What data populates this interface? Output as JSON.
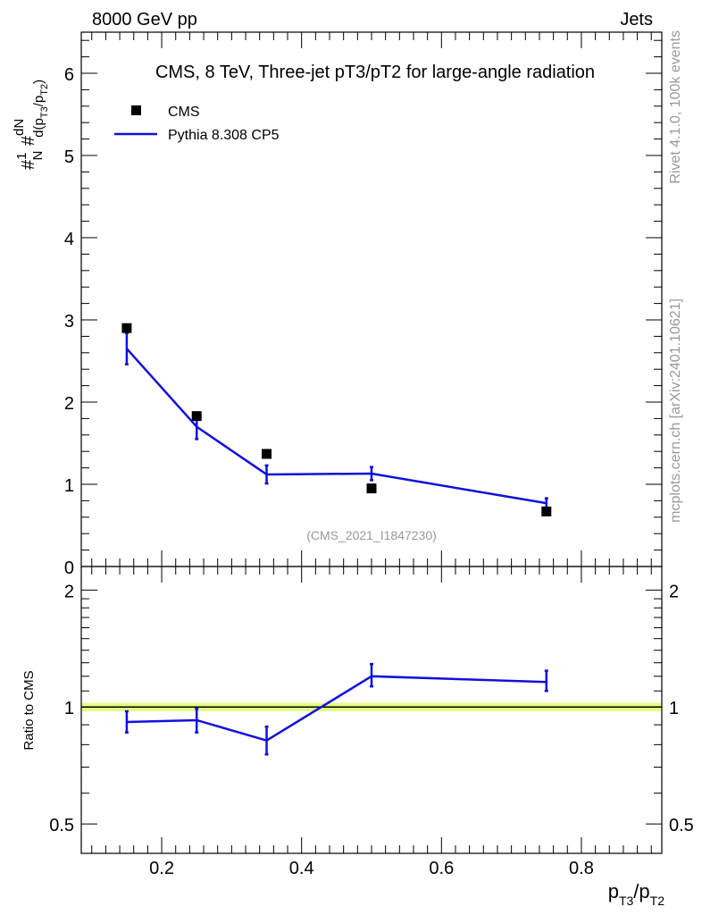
{
  "header": {
    "left": "8000 GeV pp",
    "right": "Jets"
  },
  "side_labels": {
    "rivet": "Rivet 4.1.0,  100k events",
    "mcplots": "mcplots.cern.ch [arXiv:2401.10621]"
  },
  "chart_data": [
    {
      "type": "scatter",
      "title": "CMS, 8 TeV, Three-jet pT3/pT2 for large-angle radiation",
      "watermark": "(CMS_2021_I1847230)",
      "ylabel": "#1/N #dN/d(p_T3/p_T2)",
      "ylim": [
        0,
        6.5
      ],
      "yticks": [
        0,
        1,
        2,
        3,
        4,
        5,
        6
      ],
      "xlim": [
        0.085,
        0.915
      ],
      "legend_position": "top-left",
      "legend": [
        {
          "name": "CMS",
          "marker": "square",
          "color": "#000000"
        },
        {
          "name": "Pythia 8.308 CP5",
          "marker": "line",
          "color": "#1010dd"
        }
      ],
      "series": [
        {
          "name": "CMS",
          "x": [
            0.15,
            0.25,
            0.35,
            0.5,
            0.75
          ],
          "y": [
            2.9,
            1.83,
            1.37,
            0.95,
            0.67
          ]
        },
        {
          "name": "Pythia 8.308 CP5",
          "x": [
            0.15,
            0.25,
            0.35,
            0.5,
            0.75
          ],
          "y": [
            2.65,
            1.7,
            1.12,
            1.13,
            0.77
          ],
          "err": [
            0.19,
            0.15,
            0.11,
            0.08,
            0.06
          ]
        }
      ]
    },
    {
      "type": "line",
      "ylabel": "Ratio to CMS",
      "yscale": "log",
      "ylim": [
        0.42,
        2.3
      ],
      "yticks": [
        {
          "value": 0.5,
          "label": "0.5"
        },
        {
          "value": 1,
          "label": "1"
        },
        {
          "value": 2,
          "label": "2"
        }
      ],
      "xlabel": "p_T3/p_T2",
      "xlim": [
        0.085,
        0.915
      ],
      "xticks": [
        {
          "value": 0.2,
          "label": "0.2"
        },
        {
          "value": 0.4,
          "label": "0.4"
        },
        {
          "value": 0.6,
          "label": "0.6"
        },
        {
          "value": 0.8,
          "label": "0.8"
        }
      ],
      "band": {
        "lo": 0.975,
        "hi": 1.025,
        "color": "#ddff66"
      },
      "series": [
        {
          "name": "Pythia 8.308 CP5 / CMS",
          "x": [
            0.15,
            0.25,
            0.35,
            0.5,
            0.75
          ],
          "y": [
            0.915,
            0.925,
            0.82,
            1.2,
            1.16
          ],
          "lo": [
            0.86,
            0.86,
            0.755,
            1.13,
            1.1
          ],
          "hi": [
            0.975,
            0.99,
            0.89,
            1.29,
            1.24
          ]
        }
      ]
    }
  ]
}
